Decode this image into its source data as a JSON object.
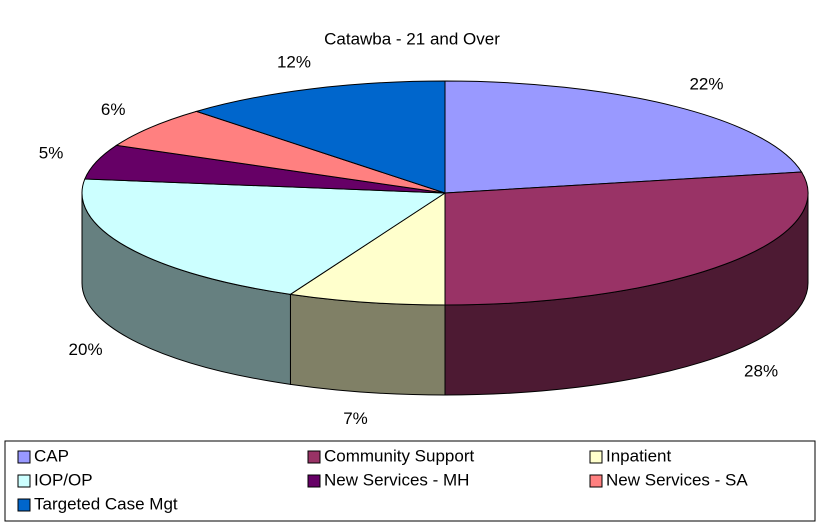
{
  "chart_data": {
    "type": "pie",
    "title": "Catawba - 21 and Over",
    "categories": [
      "CAP",
      "Community Support",
      "Inpatient",
      "IOP/OP",
      "New Services - MH",
      "New Services - SA",
      "Targeted Case Mgt"
    ],
    "values": [
      22,
      28,
      7,
      20,
      5,
      6,
      12
    ],
    "value_labels": [
      "22%",
      "28%",
      "7%",
      "20%",
      "5%",
      "6%",
      "12%"
    ],
    "colors": [
      "#9999ff",
      "#993366",
      "#ffffcc",
      "#ccffff",
      "#660066",
      "#ff8080",
      "#0066cc"
    ],
    "legend": "bottom"
  }
}
